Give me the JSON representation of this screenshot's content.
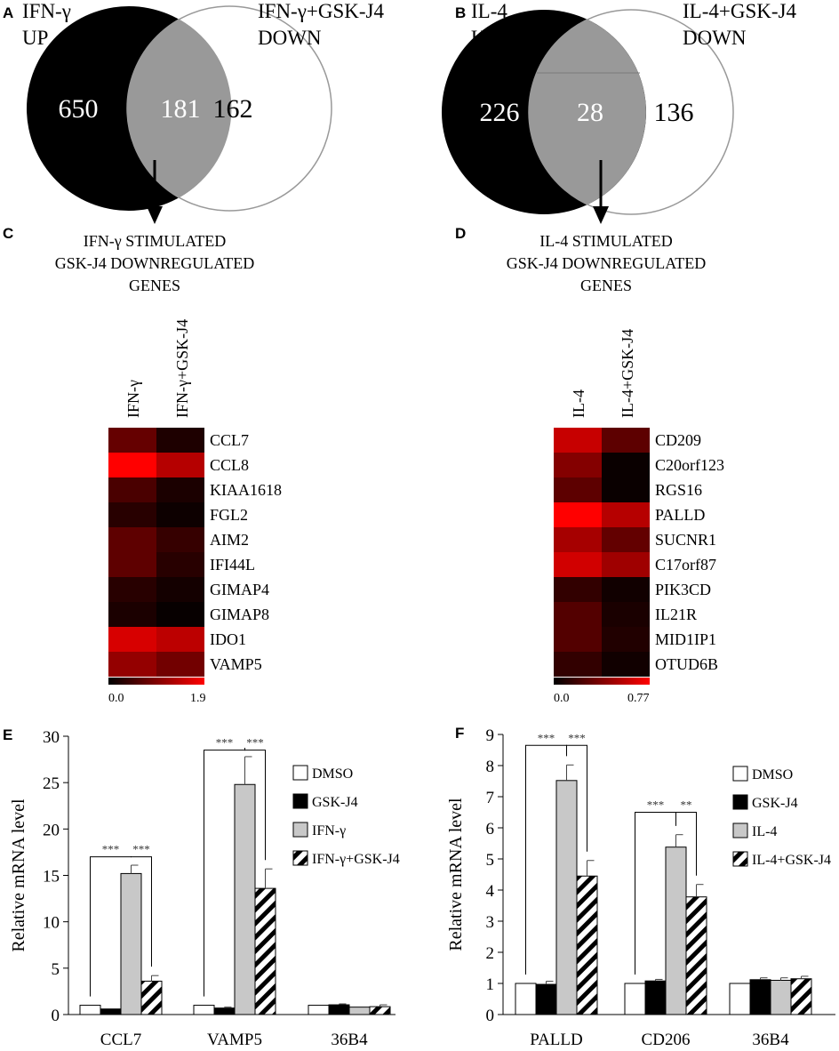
{
  "panels": {
    "A": {
      "letter": "A",
      "left_label": [
        "IFN-γ",
        "UP"
      ],
      "right_label": [
        "IFN-γ+GSK-J4",
        "DOWN"
      ],
      "left_only": "650",
      "overlap": "181",
      "right_only": "162"
    },
    "B": {
      "letter": "B",
      "left_label": [
        "IL-4",
        "UP"
      ],
      "right_label": [
        "IL-4+GSK-J4",
        "DOWN"
      ],
      "left_only": "226",
      "overlap": "28",
      "right_only": "136"
    },
    "C": {
      "letter": "C",
      "title": [
        "IFN-γ STIMULATED",
        "GSK-J4 DOWNREGULATED",
        "GENES"
      ],
      "columns": [
        "IFN-γ",
        "IFN-γ+GSK-J4"
      ],
      "genes": [
        "CCL7",
        "CCL8",
        "KIAA1618",
        "FGL2",
        "AIM2",
        "IFI44L",
        "GIMAP4",
        "GIMAP8",
        "IDO1",
        "VAMP5"
      ],
      "values": [
        [
          0.75,
          0.22
        ],
        [
          1.9,
          1.35
        ],
        [
          0.55,
          0.2
        ],
        [
          0.3,
          0.1
        ],
        [
          0.7,
          0.4
        ],
        [
          0.7,
          0.3
        ],
        [
          0.3,
          0.15
        ],
        [
          0.2,
          0.05
        ],
        [
          1.6,
          1.4
        ],
        [
          1.1,
          0.85
        ]
      ],
      "scale_min": "0.0",
      "scale_max": "1.9",
      "scale_max_value": 1.9
    },
    "D": {
      "letter": "D",
      "title": [
        "IL-4 STIMULATED",
        "GSK-J4 DOWNREGULATED",
        "GENES"
      ],
      "columns": [
        "IL-4",
        "IL-4+GSK-J4"
      ],
      "genes": [
        "CD209",
        "C20orf123",
        "RGS16",
        "PALLD",
        "SUCNR1",
        "C17orf87",
        "PIK3CD",
        "IL21R",
        "MID1IP1",
        "OTUD6B"
      ],
      "values": [
        [
          0.6,
          0.28
        ],
        [
          0.4,
          0.03
        ],
        [
          0.28,
          0.03
        ],
        [
          0.77,
          0.55
        ],
        [
          0.5,
          0.3
        ],
        [
          0.63,
          0.48
        ],
        [
          0.15,
          0.05
        ],
        [
          0.25,
          0.08
        ],
        [
          0.25,
          0.1
        ],
        [
          0.15,
          0.05
        ]
      ],
      "scale_min": "0.0",
      "scale_max": "0.77",
      "scale_max_value": 0.77
    }
  },
  "colors": {
    "venn_dark": "#000000",
    "venn_overlap": "#999999",
    "bar_dmso": "#ffffff",
    "bar_gsk": "#000000",
    "bar_cytokine": "#c8c8c8",
    "heat_high": "#ff0000",
    "heat_low": "#000000"
  },
  "chart_data": [
    {
      "panel": "E",
      "type": "bar",
      "ylabel": "Relative mRNA level",
      "ylim": [
        0,
        30
      ],
      "yticks": [
        0,
        5,
        10,
        15,
        20,
        25,
        30
      ],
      "categories": [
        "CCL7",
        "VAMP5",
        "36B4"
      ],
      "series": [
        {
          "name": "DMSO",
          "values": [
            1.0,
            1.0,
            1.0
          ],
          "errors": [
            0,
            0,
            0
          ]
        },
        {
          "name": "GSK-J4",
          "values": [
            0.6,
            0.7,
            1.05
          ],
          "errors": [
            0,
            0.1,
            0.1
          ]
        },
        {
          "name": "IFN-γ",
          "values": [
            15.2,
            24.8,
            0.8
          ],
          "errors": [
            0.9,
            3.0,
            0
          ]
        },
        {
          "name": "IFN-γ+GSK-J4",
          "values": [
            3.6,
            13.6,
            0.85
          ],
          "errors": [
            0.6,
            2.1,
            0.2
          ]
        }
      ],
      "significance": [
        {
          "category": 0,
          "from": 0,
          "to": 2,
          "label": "***",
          "height": 17.0
        },
        {
          "category": 0,
          "from": 2,
          "to": 3,
          "label": "***",
          "height": 17.0
        },
        {
          "category": 1,
          "from": 0,
          "to": 2,
          "label": "***",
          "height": 28.5
        },
        {
          "category": 1,
          "from": 2,
          "to": 3,
          "label": "***",
          "height": 28.5
        }
      ]
    },
    {
      "panel": "F",
      "type": "bar",
      "ylabel": "Relative mRNA level",
      "ylim": [
        0,
        9
      ],
      "yticks": [
        0,
        1,
        2,
        3,
        4,
        5,
        6,
        7,
        8,
        9
      ],
      "categories": [
        "PALLD",
        "CD206",
        "36B4"
      ],
      "series": [
        {
          "name": "DMSO",
          "values": [
            1.0,
            1.0,
            1.0
          ],
          "errors": [
            0,
            0,
            0
          ]
        },
        {
          "name": "GSK-J4",
          "values": [
            0.97,
            1.08,
            1.12
          ],
          "errors": [
            0.1,
            0.05,
            0.06
          ]
        },
        {
          "name": "IL-4",
          "values": [
            7.52,
            5.38,
            1.1
          ],
          "errors": [
            0.5,
            0.4,
            0.08
          ]
        },
        {
          "name": "IL-4+GSK-J4",
          "values": [
            4.45,
            3.78,
            1.15
          ],
          "errors": [
            0.5,
            0.4,
            0.08
          ]
        }
      ],
      "significance": [
        {
          "category": 0,
          "from": 0,
          "to": 2,
          "label": "***",
          "height": 8.65
        },
        {
          "category": 0,
          "from": 2,
          "to": 3,
          "label": "***",
          "height": 8.65
        },
        {
          "category": 1,
          "from": 0,
          "to": 2,
          "label": "***",
          "height": 6.5
        },
        {
          "category": 1,
          "from": 2,
          "to": 3,
          "label": "**",
          "height": 6.5
        }
      ]
    }
  ]
}
